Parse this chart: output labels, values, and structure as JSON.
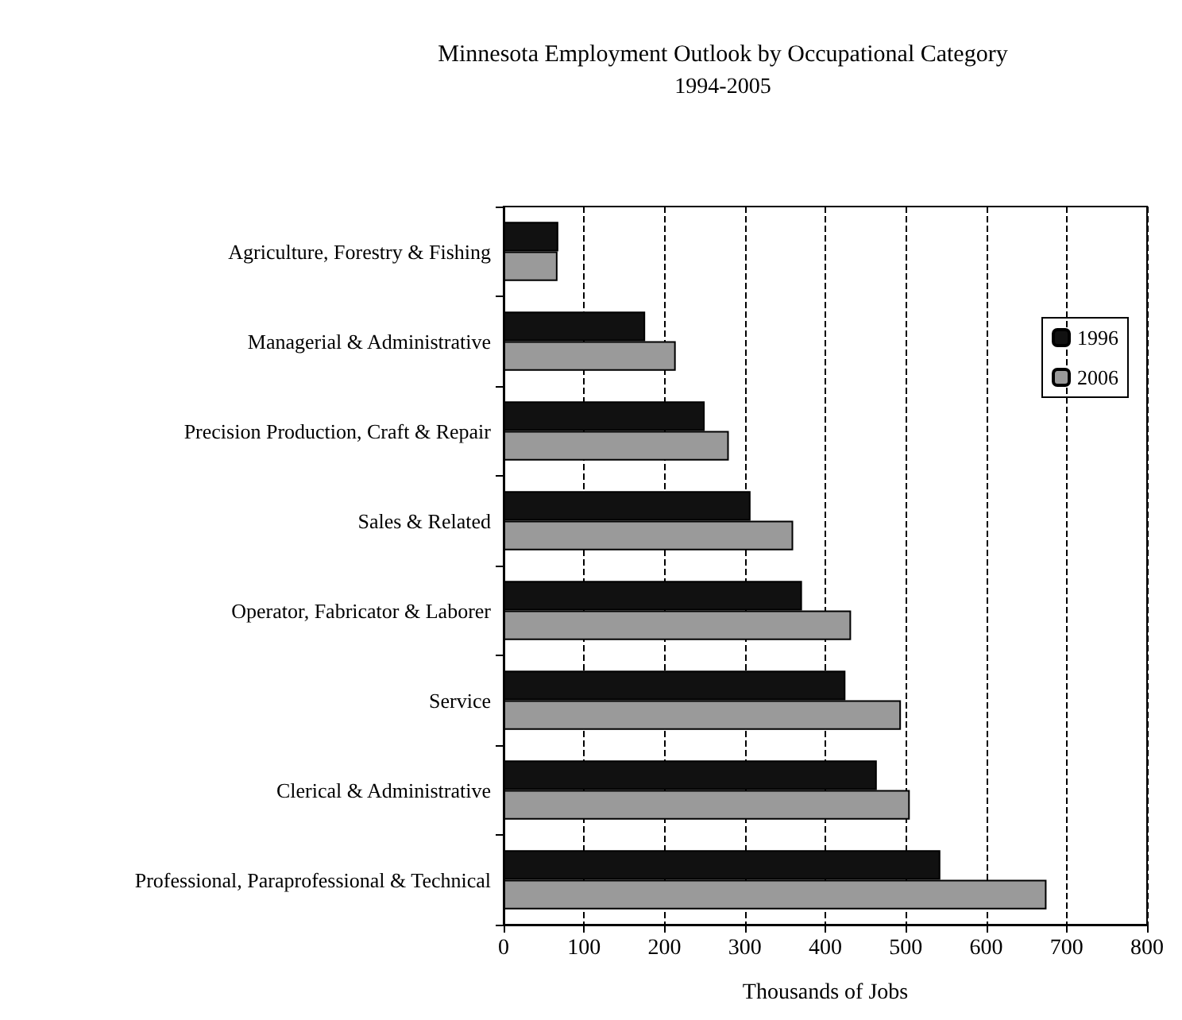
{
  "chart_data": {
    "type": "bar",
    "orientation": "horizontal",
    "title": "Minnesota Employment Outlook by Occupational Category",
    "subtitle": "1994-2005",
    "xlabel": "Thousands of Jobs",
    "categories": [
      "Agriculture, Forestry & Fishing",
      "Managerial & Administrative",
      "Precision Production, Craft & Repair",
      "Sales & Related",
      "Operator, Fabricator & Laborer",
      "Service",
      "Clerical & Administrative",
      "Professional, Paraprofessional & Technical"
    ],
    "series": [
      {
        "name": "1996",
        "color": "#111111",
        "values": [
          68,
          176,
          250,
          307,
          371,
          425,
          464,
          543
        ]
      },
      {
        "name": "2006",
        "color": "#9a9a9a",
        "values": [
          67,
          214,
          280,
          360,
          432,
          494,
          505,
          675
        ]
      }
    ],
    "xlim": [
      0,
      800
    ],
    "xticks": [
      0,
      100,
      200,
      300,
      400,
      500,
      600,
      700,
      800
    ],
    "grid": "x",
    "legend": "right"
  }
}
